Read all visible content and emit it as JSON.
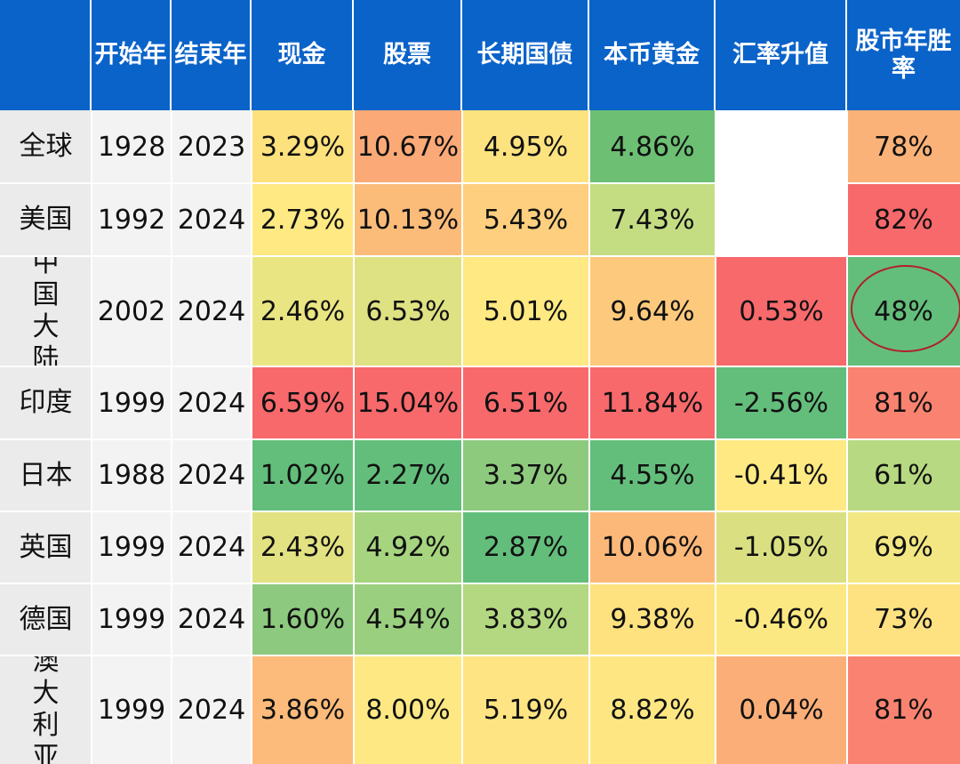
{
  "chart_data": {
    "type": "table",
    "columns": [
      "",
      "开始年",
      "结束年",
      "现金",
      "股票",
      "长期国债",
      "本币黄金",
      "汇率升值",
      "股市年胜率"
    ],
    "rows": [
      {
        "label": "全球",
        "start": "1928",
        "end": "2023",
        "values": [
          "3.29%",
          "10.67%",
          "4.95%",
          "4.86%",
          "",
          "78%"
        ],
        "colors": [
          "#fde17d",
          "#fbaa77",
          "#fde380",
          "#6cbf73",
          "#ffffff",
          "#fbb278"
        ]
      },
      {
        "label": "美国",
        "start": "1992",
        "end": "2024",
        "values": [
          "2.73%",
          "10.13%",
          "5.43%",
          "7.43%",
          "",
          "82%"
        ],
        "colors": [
          "#fee983",
          "#fbbc7a",
          "#fdcf7e",
          "#c4dd83",
          "#ffffff",
          "#f8696b"
        ]
      },
      {
        "label": "中国大陆",
        "start": "2002",
        "end": "2024",
        "values": [
          "2.46%",
          "6.53%",
          "5.01%",
          "9.64%",
          "0.53%",
          "48%"
        ],
        "colors": [
          "#eae583",
          "#dfe282",
          "#fee982",
          "#fdca7d",
          "#f8696b",
          "#63be7b"
        ]
      },
      {
        "label": "印度",
        "start": "1999",
        "end": "2024",
        "values": [
          "6.59%",
          "15.04%",
          "6.51%",
          "11.84%",
          "-2.56%",
          "81%"
        ],
        "colors": [
          "#f8696b",
          "#f8696b",
          "#f8696b",
          "#f8696b",
          "#63be7b",
          "#f98370"
        ]
      },
      {
        "label": "日本",
        "start": "1988",
        "end": "2024",
        "values": [
          "1.02%",
          "2.27%",
          "3.37%",
          "4.55%",
          "-0.41%",
          "61%"
        ],
        "colors": [
          "#63be7b",
          "#63be7b",
          "#8dca7e",
          "#63be7b",
          "#fee983",
          "#b7d981"
        ]
      },
      {
        "label": "英国",
        "start": "1999",
        "end": "2024",
        "values": [
          "2.43%",
          "4.92%",
          "2.87%",
          "10.06%",
          "-1.05%",
          "69%"
        ],
        "colors": [
          "#e3e282",
          "#a6d47f",
          "#63be7b",
          "#fcb879",
          "#dae081",
          "#f2e783"
        ]
      },
      {
        "label": "德国",
        "start": "1999",
        "end": "2024",
        "values": [
          "1.60%",
          "4.54%",
          "3.83%",
          "9.38%",
          "-0.46%",
          "73%"
        ],
        "colors": [
          "#8dc97e",
          "#9acf7f",
          "#b4d881",
          "#fee280",
          "#fce882",
          "#fee282"
        ]
      },
      {
        "label": "澳大利亚",
        "start": "1999",
        "end": "2024",
        "values": [
          "3.86%",
          "8.00%",
          "5.19%",
          "8.82%",
          "0.04%",
          "81%"
        ],
        "colors": [
          "#fcbb7a",
          "#fee883",
          "#fee483",
          "#fee783",
          "#fbae77",
          "#f98370"
        ]
      }
    ],
    "highlight": {
      "row": "中国大陆",
      "column": "股市年胜率",
      "style": "red-circle"
    }
  }
}
